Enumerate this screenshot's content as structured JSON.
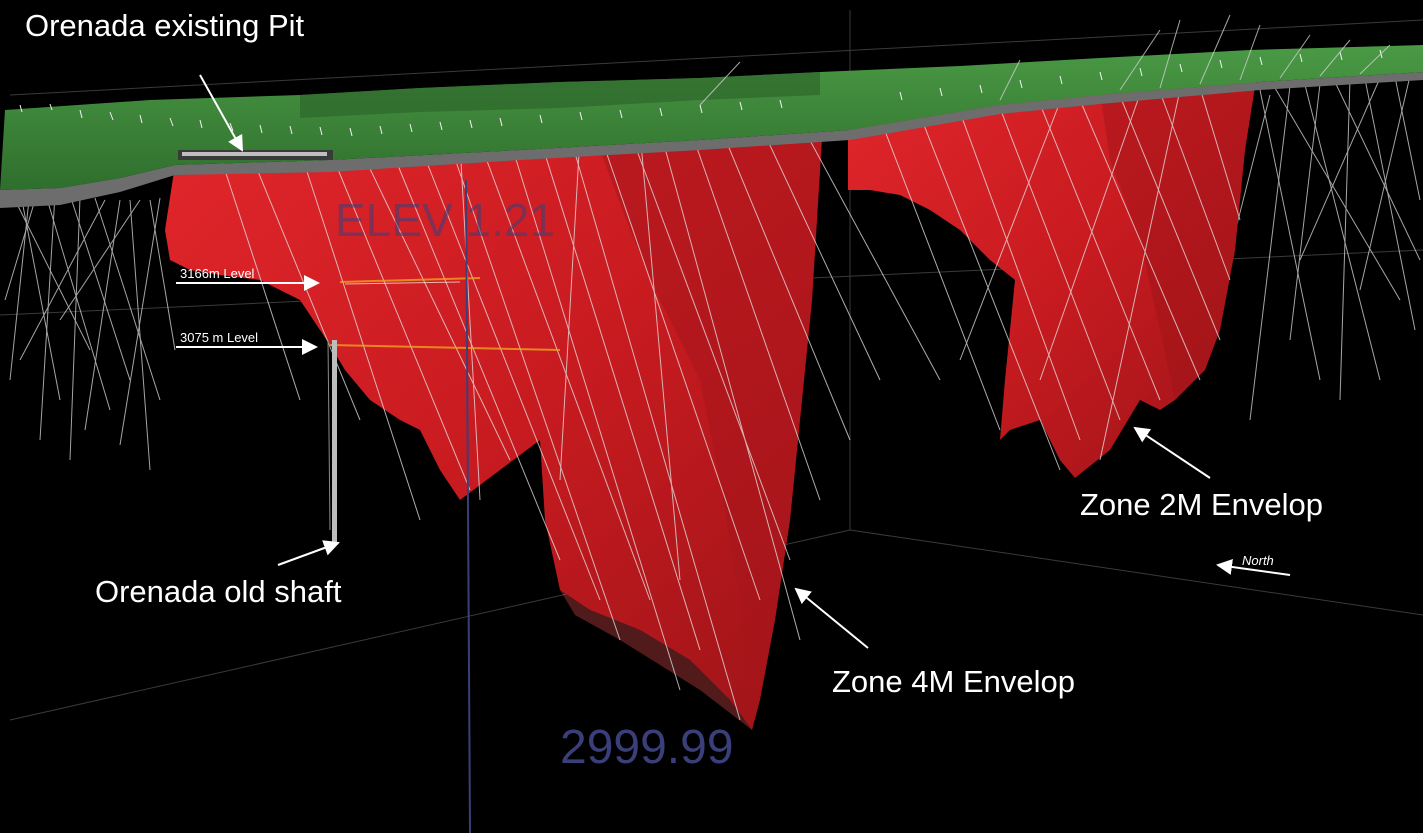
{
  "labels": {
    "pit": "Orenada existing Pit",
    "level_3166": "3166m Level",
    "level_3075": "3075 m Level",
    "shaft": "Orenada old shaft",
    "zone2m": "Zone 2M Envelop",
    "zone4m": "Zone 4M Envelop",
    "north": "North",
    "elev": "ELEV 1.21",
    "elev_value": "2999.99"
  },
  "colors": {
    "background": "#000000",
    "surface": "#3f8a3c",
    "surface_edge": "#6d6d6d",
    "orebody": "#cf1f24",
    "orebody_shade": "#8f1217",
    "drillholes": "#d9d9d9",
    "label_text": "#ffffff",
    "faint_text": "#3a3f7a"
  },
  "icons": {
    "label_arrows": "arrow-icon",
    "north": "north-arrow-icon"
  }
}
